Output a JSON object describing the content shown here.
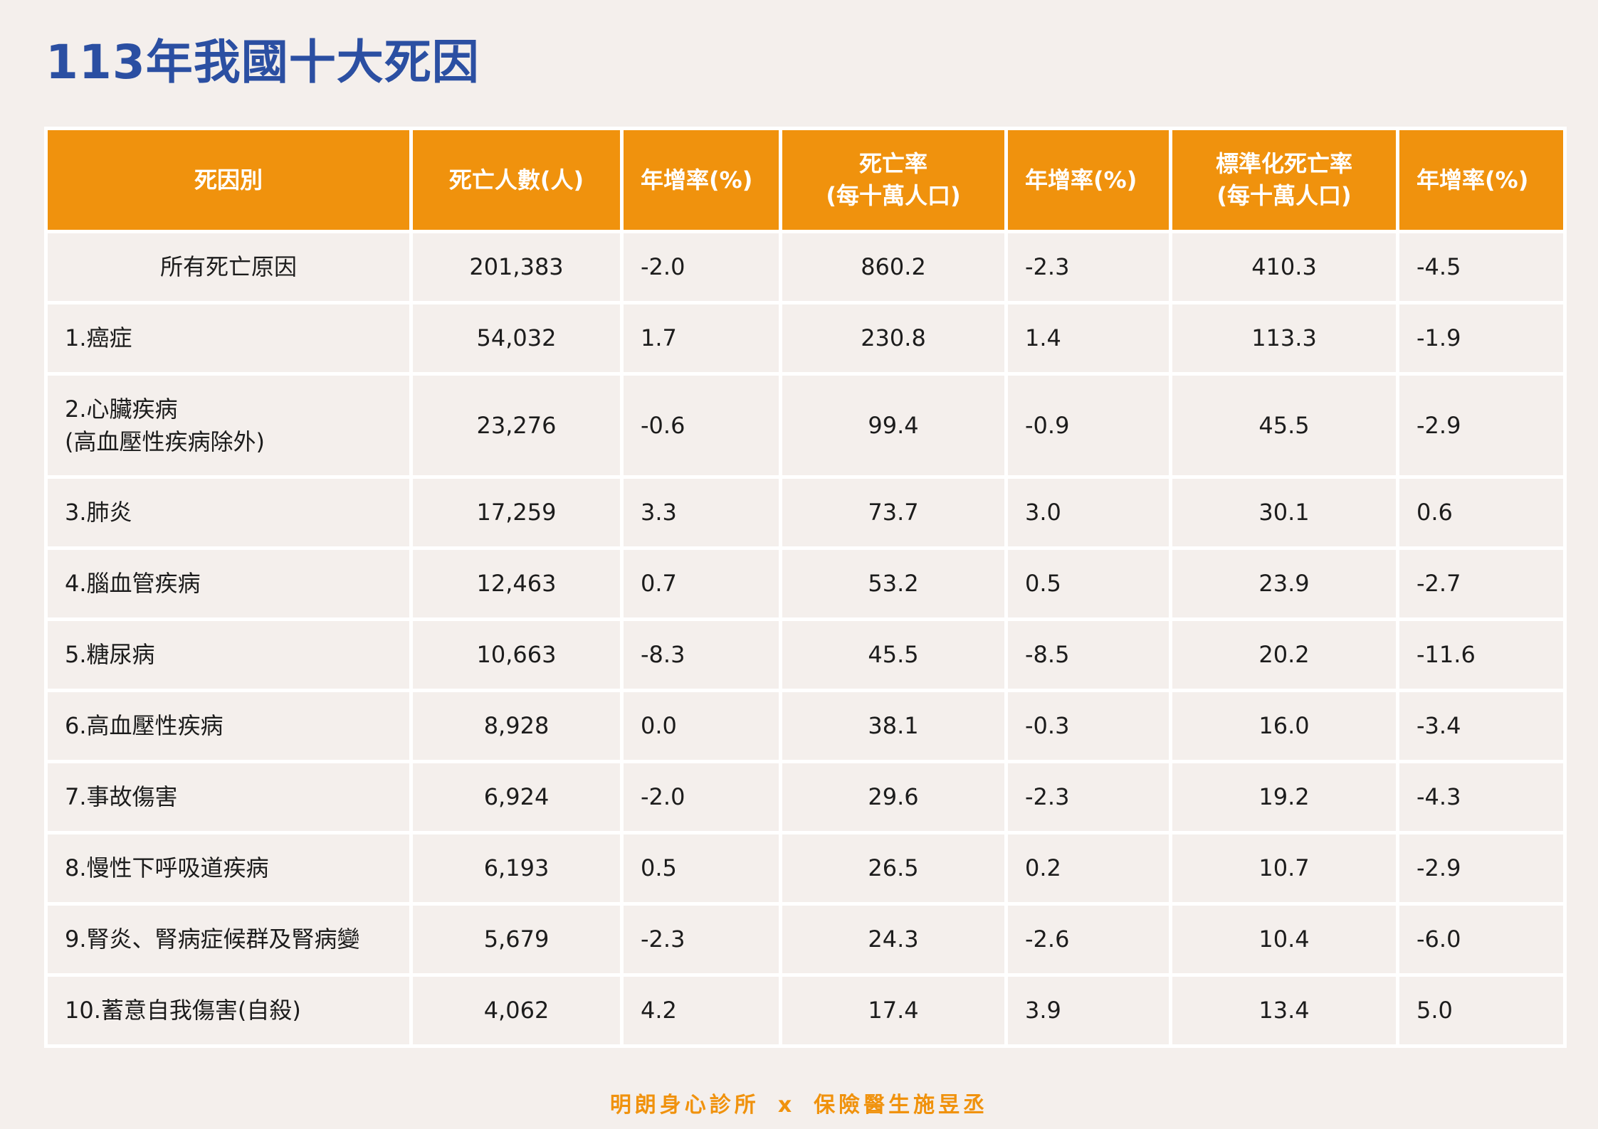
{
  "title": "113年我國十大死因",
  "table": {
    "headers": {
      "cause": "死因別",
      "deaths": "死亡人數(人)",
      "deaths_growth": "年增率(%)",
      "rate_line1": "死亡率",
      "rate_line2": "(每十萬人口)",
      "rate_growth": "年增率(%)",
      "std_rate_line1": "標準化死亡率",
      "std_rate_line2": "(每十萬人口)",
      "std_rate_growth": "年增率(%)"
    },
    "rows": [
      {
        "cause": "所有死亡原因",
        "cause2": "",
        "deaths": "201,383",
        "deaths_growth": "-2.0",
        "rate": "860.2",
        "rate_growth": "-2.3",
        "std_rate": "410.3",
        "std_rate_growth": "-4.5"
      },
      {
        "cause": "1.癌症",
        "cause2": "",
        "deaths": "54,032",
        "deaths_growth": "1.7",
        "rate": "230.8",
        "rate_growth": "1.4",
        "std_rate": "113.3",
        "std_rate_growth": "-1.9"
      },
      {
        "cause": "2.心臟疾病",
        "cause2": "(高血壓性疾病除外)",
        "deaths": "23,276",
        "deaths_growth": "-0.6",
        "rate": "99.4",
        "rate_growth": "-0.9",
        "std_rate": "45.5",
        "std_rate_growth": "-2.9"
      },
      {
        "cause": "3.肺炎",
        "cause2": "",
        "deaths": "17,259",
        "deaths_growth": "3.3",
        "rate": "73.7",
        "rate_growth": "3.0",
        "std_rate": "30.1",
        "std_rate_growth": "0.6"
      },
      {
        "cause": "4.腦血管疾病",
        "cause2": "",
        "deaths": "12,463",
        "deaths_growth": "0.7",
        "rate": "53.2",
        "rate_growth": "0.5",
        "std_rate": "23.9",
        "std_rate_growth": "-2.7"
      },
      {
        "cause": "5.糖尿病",
        "cause2": "",
        "deaths": "10,663",
        "deaths_growth": "-8.3",
        "rate": "45.5",
        "rate_growth": "-8.5",
        "std_rate": "20.2",
        "std_rate_growth": "-11.6"
      },
      {
        "cause": "6.高血壓性疾病",
        "cause2": "",
        "deaths": "8,928",
        "deaths_growth": "0.0",
        "rate": "38.1",
        "rate_growth": "-0.3",
        "std_rate": "16.0",
        "std_rate_growth": "-3.4"
      },
      {
        "cause": "7.事故傷害",
        "cause2": "",
        "deaths": "6,924",
        "deaths_growth": "-2.0",
        "rate": "29.6",
        "rate_growth": "-2.3",
        "std_rate": "19.2",
        "std_rate_growth": "-4.3"
      },
      {
        "cause": "8.慢性下呼吸道疾病",
        "cause2": "",
        "deaths": "6,193",
        "deaths_growth": "0.5",
        "rate": "26.5",
        "rate_growth": "0.2",
        "std_rate": "10.7",
        "std_rate_growth": "-2.9"
      },
      {
        "cause": "9.腎炎、腎病症候群及腎病變",
        "cause2": "",
        "deaths": "5,679",
        "deaths_growth": "-2.3",
        "rate": "24.3",
        "rate_growth": "-2.6",
        "std_rate": "10.4",
        "std_rate_growth": "-6.0"
      },
      {
        "cause": "10.蓄意自我傷害(自殺)",
        "cause2": "",
        "deaths": "4,062",
        "deaths_growth": "4.2",
        "rate": "17.4",
        "rate_growth": "3.9",
        "std_rate": "13.4",
        "std_rate_growth": "5.0"
      }
    ]
  },
  "footer": {
    "left": "明朗身心診所",
    "separator": "x",
    "right": "保險醫生施昱丞"
  },
  "colors": {
    "title": "#2b4fa2",
    "header_bg": "#f0920d",
    "page_bg": "#f4efec",
    "footer": "#f0920d"
  }
}
